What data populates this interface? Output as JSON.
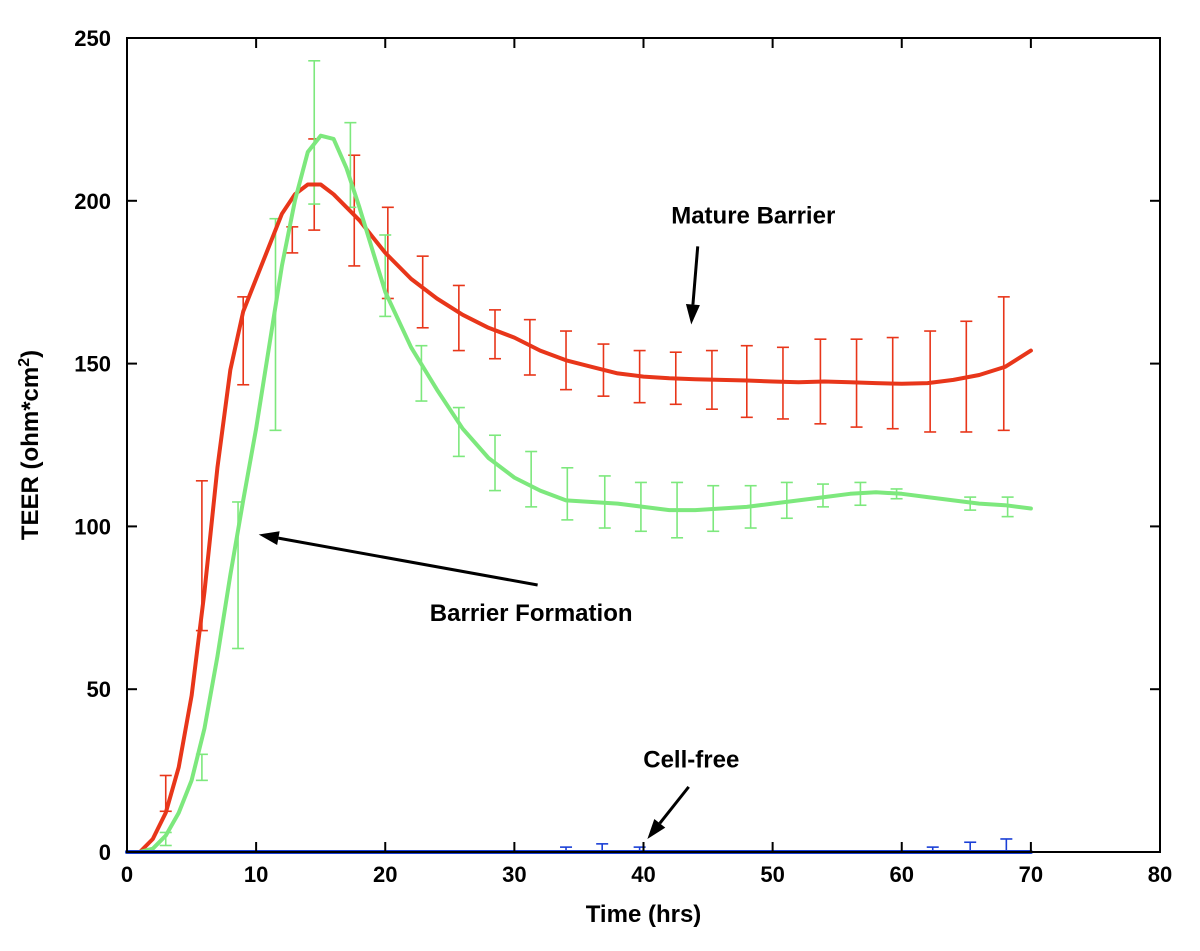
{
  "chart_data": {
    "type": "line",
    "title": "",
    "xlabel": "Time (hrs)",
    "ylabel_main": "TEER (ohm*cm",
    "ylabel_sup": "2",
    "ylabel_tail": ")",
    "xlim": [
      0,
      80
    ],
    "ylim": [
      0,
      250
    ],
    "xticks": [
      0,
      10,
      20,
      30,
      40,
      50,
      60,
      70,
      80
    ],
    "yticks": [
      0,
      50,
      100,
      150,
      200,
      250
    ],
    "grid": false,
    "series": [
      {
        "color": "#e8361a",
        "x": [
          0,
          1,
          2,
          3,
          4,
          5,
          6,
          7,
          8,
          9,
          10,
          11,
          12,
          13,
          14,
          15,
          16,
          17,
          18,
          19,
          20,
          22,
          24,
          26,
          28,
          30,
          32,
          34,
          36,
          38,
          40,
          42,
          44,
          46,
          48,
          50,
          52,
          54,
          56,
          58,
          60,
          62,
          64,
          66,
          68,
          70
        ],
        "y": [
          0,
          0,
          4,
          12,
          26,
          48,
          80,
          118,
          148,
          166,
          176,
          186,
          196,
          202,
          205,
          205,
          202,
          198,
          194,
          189,
          184,
          176,
          170,
          165,
          161,
          158,
          154,
          151,
          149,
          147,
          146,
          145.5,
          145.2,
          145,
          144.8,
          144.5,
          144.3,
          144.5,
          144.3,
          144,
          143.8,
          144,
          145,
          146.5,
          149,
          154
        ],
        "errors": [
          {
            "x": 3.0,
            "y": 18,
            "err": 5.5
          },
          {
            "x": 5.8,
            "y": 91,
            "err": 23
          },
          {
            "x": 9.0,
            "y": 157,
            "err": 13.5
          },
          {
            "x": 12.8,
            "y": 188,
            "err": 4
          },
          {
            "x": 14.5,
            "y": 205,
            "err": 14
          },
          {
            "x": 17.6,
            "y": 197,
            "err": 17
          },
          {
            "x": 20.2,
            "y": 184,
            "err": 14
          },
          {
            "x": 22.9,
            "y": 172,
            "err": 11
          },
          {
            "x": 25.7,
            "y": 164,
            "err": 10
          },
          {
            "x": 28.5,
            "y": 159,
            "err": 7.5
          },
          {
            "x": 31.2,
            "y": 155,
            "err": 8.5
          },
          {
            "x": 34.0,
            "y": 151,
            "err": 9
          },
          {
            "x": 36.9,
            "y": 148,
            "err": 8
          },
          {
            "x": 39.7,
            "y": 146,
            "err": 8
          },
          {
            "x": 42.5,
            "y": 145.5,
            "err": 8
          },
          {
            "x": 45.3,
            "y": 145,
            "err": 9
          },
          {
            "x": 48.0,
            "y": 144.5,
            "err": 11
          },
          {
            "x": 50.8,
            "y": 144,
            "err": 11
          },
          {
            "x": 53.7,
            "y": 144.5,
            "err": 13
          },
          {
            "x": 56.5,
            "y": 144,
            "err": 13.5
          },
          {
            "x": 59.3,
            "y": 144,
            "err": 14
          },
          {
            "x": 62.2,
            "y": 144.5,
            "err": 15.5
          },
          {
            "x": 65.0,
            "y": 146,
            "err": 17
          },
          {
            "x": 67.9,
            "y": 150,
            "err": 20.5
          }
        ]
      },
      {
        "color": "#7de87d",
        "x": [
          0,
          1,
          2,
          3,
          4,
          5,
          6,
          7,
          8,
          9,
          10,
          11,
          12,
          13,
          14,
          15,
          16,
          17,
          18,
          19,
          20,
          22,
          24,
          26,
          28,
          30,
          32,
          34,
          36,
          38,
          40,
          42,
          44,
          46,
          48,
          50,
          52,
          54,
          56,
          58,
          60,
          62,
          64,
          66,
          68,
          70
        ],
        "y": [
          0,
          0,
          1,
          5,
          12,
          22,
          38,
          60,
          85,
          108,
          130,
          155,
          180,
          200,
          215,
          220,
          219,
          210,
          198,
          185,
          172,
          155,
          142,
          130,
          121,
          115,
          111,
          108,
          107.5,
          107,
          106,
          105,
          105,
          105.5,
          106,
          107,
          108,
          109,
          110,
          110.5,
          110,
          109,
          108,
          107,
          106.5,
          105.5
        ],
        "errors": [
          {
            "x": 3.0,
            "y": 4,
            "err": 2
          },
          {
            "x": 5.8,
            "y": 26,
            "err": 4
          },
          {
            "x": 8.6,
            "y": 85,
            "err": 22.5
          },
          {
            "x": 11.5,
            "y": 162,
            "err": 32.5
          },
          {
            "x": 14.5,
            "y": 221,
            "err": 22
          },
          {
            "x": 17.3,
            "y": 211,
            "err": 13
          },
          {
            "x": 20.0,
            "y": 177,
            "err": 12.5
          },
          {
            "x": 22.8,
            "y": 147,
            "err": 8.5
          },
          {
            "x": 25.7,
            "y": 129,
            "err": 7.5
          },
          {
            "x": 28.5,
            "y": 119.5,
            "err": 8.5
          },
          {
            "x": 31.3,
            "y": 114.5,
            "err": 8.5
          },
          {
            "x": 34.1,
            "y": 110,
            "err": 8
          },
          {
            "x": 37.0,
            "y": 107.5,
            "err": 8
          },
          {
            "x": 39.8,
            "y": 106,
            "err": 7.5
          },
          {
            "x": 42.6,
            "y": 105,
            "err": 8.5
          },
          {
            "x": 45.4,
            "y": 105.5,
            "err": 7
          },
          {
            "x": 48.3,
            "y": 106,
            "err": 6.5
          },
          {
            "x": 51.1,
            "y": 108,
            "err": 5.5
          },
          {
            "x": 53.9,
            "y": 109.5,
            "err": 3.5
          },
          {
            "x": 56.8,
            "y": 110,
            "err": 3.5
          },
          {
            "x": 59.6,
            "y": 110,
            "err": 1.5
          },
          {
            "x": 65.3,
            "y": 107,
            "err": 2
          },
          {
            "x": 68.2,
            "y": 106,
            "err": 3
          }
        ]
      },
      {
        "color": "#1a3fd6",
        "x": [
          0,
          10,
          20,
          30,
          40,
          50,
          60,
          70
        ],
        "y": [
          0,
          0,
          0,
          0,
          0,
          0,
          0,
          0
        ],
        "errors": [
          {
            "x": 34.0,
            "y": 0,
            "err": 1.5
          },
          {
            "x": 36.8,
            "y": 0,
            "err": 2.5
          },
          {
            "x": 39.7,
            "y": 0,
            "err": 1.5
          },
          {
            "x": 62.4,
            "y": 0,
            "err": 1.5
          },
          {
            "x": 65.3,
            "y": 0,
            "err": 3
          },
          {
            "x": 68.1,
            "y": 0,
            "err": 4
          }
        ]
      }
    ],
    "annotations": [
      {
        "text": "Mature Barrier",
        "text_x": 48.5,
        "text_y": 193,
        "arrow_from": [
          44.2,
          186
        ],
        "arrow_to": [
          43.7,
          162
        ]
      },
      {
        "text": "Barrier Formation",
        "text_x": 31.3,
        "text_y": 71,
        "arrow_from": [
          31.8,
          82
        ],
        "arrow_to": [
          10.2,
          97.5
        ]
      },
      {
        "text": "Cell-free",
        "text_x": 43.7,
        "text_y": 26,
        "arrow_from": [
          43.5,
          20
        ],
        "arrow_to": [
          40.3,
          4
        ]
      }
    ]
  }
}
